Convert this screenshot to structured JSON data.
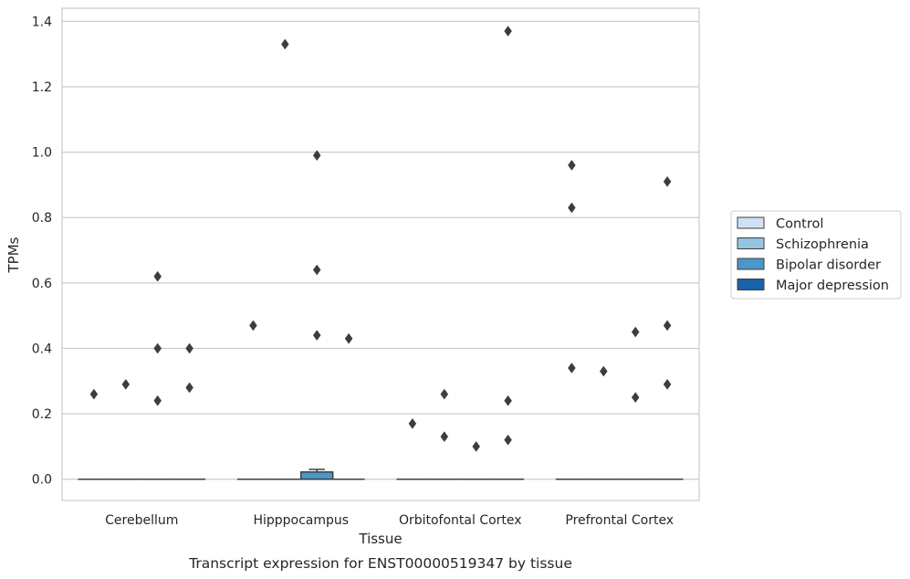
{
  "chart_data": {
    "type": "box",
    "xlabel": "Tissue",
    "ylabel": "TPMs",
    "caption": "Transcript expression for ENST00000519347 by tissue",
    "categories": [
      "Cerebellum",
      "Hipppocampus",
      "Orbitofontal Cortex",
      "Prefrontal Cortex"
    ],
    "ylim": [
      -0.065,
      1.44
    ],
    "yticks": [
      0.0,
      0.2,
      0.4,
      0.6,
      0.8,
      1.0,
      1.2,
      1.4
    ],
    "ytick_labels": [
      "0.0",
      "0.2",
      "0.4",
      "0.6",
      "0.8",
      "1.0",
      "1.2",
      "1.4"
    ],
    "grid": "horizontal",
    "legend_position": "right",
    "series": [
      {
        "name": "Control",
        "color": "#d0e1f2",
        "boxes": [
          {
            "q1": 0,
            "median": 0,
            "q3": 0,
            "whisker_low": 0,
            "whisker_high": 0,
            "outliers": [
              0.26
            ]
          },
          {
            "q1": 0,
            "median": 0,
            "q3": 0,
            "whisker_low": 0,
            "whisker_high": 0,
            "outliers": [
              0.47
            ]
          },
          {
            "q1": 0,
            "median": 0,
            "q3": 0,
            "whisker_low": 0,
            "whisker_high": 0,
            "outliers": [
              0.17
            ]
          },
          {
            "q1": 0,
            "median": 0,
            "q3": 0,
            "whisker_low": 0,
            "whisker_high": 0,
            "outliers": [
              0.96,
              0.83,
              0.34
            ]
          }
        ]
      },
      {
        "name": "Schizophrenia",
        "color": "#94c4df",
        "boxes": [
          {
            "q1": 0,
            "median": 0,
            "q3": 0,
            "whisker_low": 0,
            "whisker_high": 0,
            "outliers": [
              0.29
            ]
          },
          {
            "q1": 0,
            "median": 0,
            "q3": 0,
            "whisker_low": 0,
            "whisker_high": 0,
            "outliers": [
              1.33
            ]
          },
          {
            "q1": 0,
            "median": 0,
            "q3": 0,
            "whisker_low": 0,
            "whisker_high": 0,
            "outliers": [
              0.26,
              0.13
            ]
          },
          {
            "q1": 0,
            "median": 0,
            "q3": 0,
            "whisker_low": 0,
            "whisker_high": 0,
            "outliers": [
              0.33
            ]
          }
        ]
      },
      {
        "name": "Bipolar disorder",
        "color": "#4a98c9",
        "boxes": [
          {
            "q1": 0,
            "median": 0,
            "q3": 0,
            "whisker_low": 0,
            "whisker_high": 0,
            "outliers": [
              0.62,
              0.4,
              0.24
            ]
          },
          {
            "q1": 0,
            "median": 0,
            "q3": 0.022,
            "whisker_low": 0,
            "whisker_high": 0.03,
            "outliers": [
              0.99,
              0.64,
              0.44
            ]
          },
          {
            "q1": 0,
            "median": 0,
            "q3": 0,
            "whisker_low": 0,
            "whisker_high": 0,
            "outliers": [
              0.1
            ]
          },
          {
            "q1": 0,
            "median": 0,
            "q3": 0,
            "whisker_low": 0,
            "whisker_high": 0,
            "outliers": [
              0.45,
              0.25
            ]
          }
        ]
      },
      {
        "name": "Major depression",
        "color": "#1764ab",
        "boxes": [
          {
            "q1": 0,
            "median": 0,
            "q3": 0,
            "whisker_low": 0,
            "whisker_high": 0,
            "outliers": [
              0.4,
              0.28
            ]
          },
          {
            "q1": 0,
            "median": 0,
            "q3": 0,
            "whisker_low": 0,
            "whisker_high": 0,
            "outliers": [
              0.43
            ]
          },
          {
            "q1": 0,
            "median": 0,
            "q3": 0,
            "whisker_low": 0,
            "whisker_high": 0,
            "outliers": [
              1.37,
              0.24,
              0.12
            ]
          },
          {
            "q1": 0,
            "median": 0,
            "q3": 0,
            "whisker_low": 0,
            "whisker_high": 0,
            "outliers": [
              0.91,
              0.47,
              0.29
            ]
          }
        ]
      }
    ]
  }
}
